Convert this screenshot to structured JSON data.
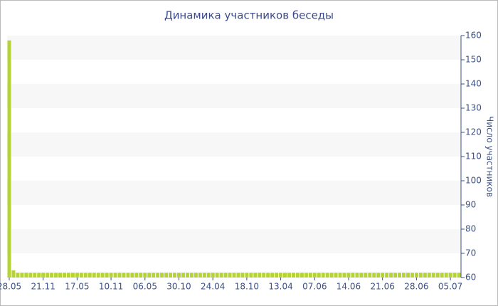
{
  "chart_data": {
    "type": "bar",
    "title": "Динамика участников беседы",
    "y_label": "Число участников",
    "categories": [
      "28.05",
      null,
      null,
      null,
      null,
      null,
      null,
      null,
      "21.11",
      null,
      null,
      null,
      null,
      null,
      null,
      null,
      "17.05",
      null,
      null,
      null,
      null,
      null,
      null,
      null,
      "10.11",
      null,
      null,
      null,
      null,
      null,
      null,
      null,
      "06.05",
      null,
      null,
      null,
      null,
      null,
      null,
      null,
      "30.10",
      null,
      null,
      null,
      null,
      null,
      null,
      null,
      "24.04",
      null,
      null,
      null,
      null,
      null,
      null,
      null,
      "18.10",
      null,
      null,
      null,
      null,
      null,
      null,
      null,
      "13.04",
      null,
      null,
      null,
      null,
      null,
      null,
      null,
      "07.06",
      null,
      null,
      null,
      null,
      null,
      null,
      null,
      "14.06",
      null,
      null,
      null,
      null,
      null,
      null,
      null,
      "21.06",
      null,
      null,
      null,
      null,
      null,
      null,
      null,
      "28.06",
      null,
      null,
      null,
      null,
      null,
      null,
      null,
      "05.07",
      null,
      null
    ],
    "values": [
      158,
      63,
      62,
      62,
      62,
      62,
      62,
      62,
      62,
      62,
      62,
      62,
      62,
      62,
      62,
      62,
      62,
      62,
      62,
      62,
      62,
      62,
      62,
      62,
      62,
      62,
      62,
      62,
      62,
      62,
      62,
      62,
      62,
      62,
      62,
      62,
      62,
      62,
      62,
      62,
      62,
      62,
      62,
      62,
      62,
      62,
      62,
      62,
      62,
      62,
      62,
      62,
      62,
      62,
      62,
      62,
      62,
      62,
      62,
      62,
      62,
      62,
      62,
      62,
      62,
      62,
      62,
      62,
      62,
      62,
      62,
      62,
      62,
      62,
      62,
      62,
      62,
      62,
      62,
      62,
      62,
      62,
      62,
      62,
      62,
      62,
      62,
      62,
      62,
      62,
      62,
      62,
      62,
      62,
      62,
      62,
      62,
      62,
      62,
      62,
      62,
      62,
      62,
      62,
      62,
      62,
      62
    ],
    "color": "#b5d334",
    "ylim": [
      60,
      160
    ],
    "yticks": [
      60,
      70,
      80,
      90,
      100,
      110,
      120,
      130,
      140,
      150,
      160
    ],
    "grid": true
  }
}
